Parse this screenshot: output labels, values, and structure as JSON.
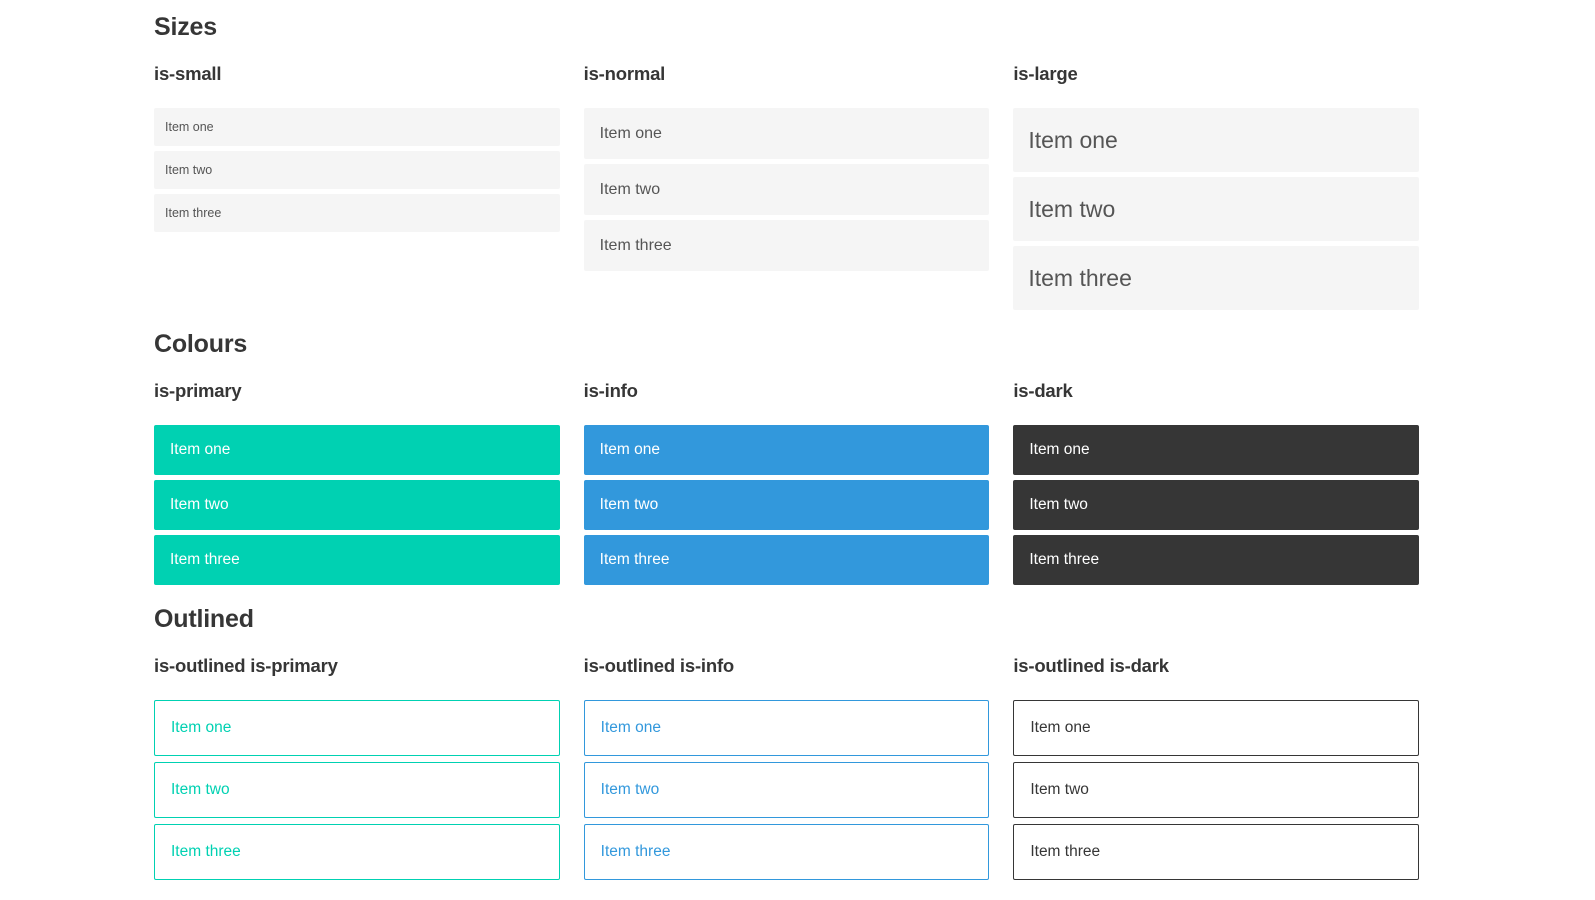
{
  "colors": {
    "primary": "#00d1b2",
    "info": "#3298dc",
    "dark": "#363636",
    "item_bg": "#f5f5f5",
    "item_text": "#555555",
    "item_text_light": "#ffffff",
    "heading_text": "#363636",
    "page_bg": "#ffffff"
  },
  "sections": [
    {
      "title": "Sizes",
      "groups": [
        {
          "label": "is-small",
          "items": [
            "Item one",
            "Item two",
            "Item three"
          ]
        },
        {
          "label": "is-normal",
          "items": [
            "Item one",
            "Item two",
            "Item three"
          ]
        },
        {
          "label": "is-large",
          "items": [
            "Item one",
            "Item two",
            "Item three"
          ]
        }
      ]
    },
    {
      "title": "Colours",
      "groups": [
        {
          "label": "is-primary",
          "items": [
            "Item one",
            "Item two",
            "Item three"
          ]
        },
        {
          "label": "is-info",
          "items": [
            "Item one",
            "Item two",
            "Item three"
          ]
        },
        {
          "label": "is-dark",
          "items": [
            "Item one",
            "Item two",
            "Item three"
          ]
        }
      ]
    },
    {
      "title": "Outlined",
      "groups": [
        {
          "label": "is-outlined is-primary",
          "items": [
            "Item one",
            "Item two",
            "Item three"
          ]
        },
        {
          "label": "is-outlined is-info",
          "items": [
            "Item one",
            "Item two",
            "Item three"
          ]
        },
        {
          "label": "is-outlined is-dark",
          "items": [
            "Item one",
            "Item two",
            "Item three"
          ]
        }
      ]
    }
  ]
}
